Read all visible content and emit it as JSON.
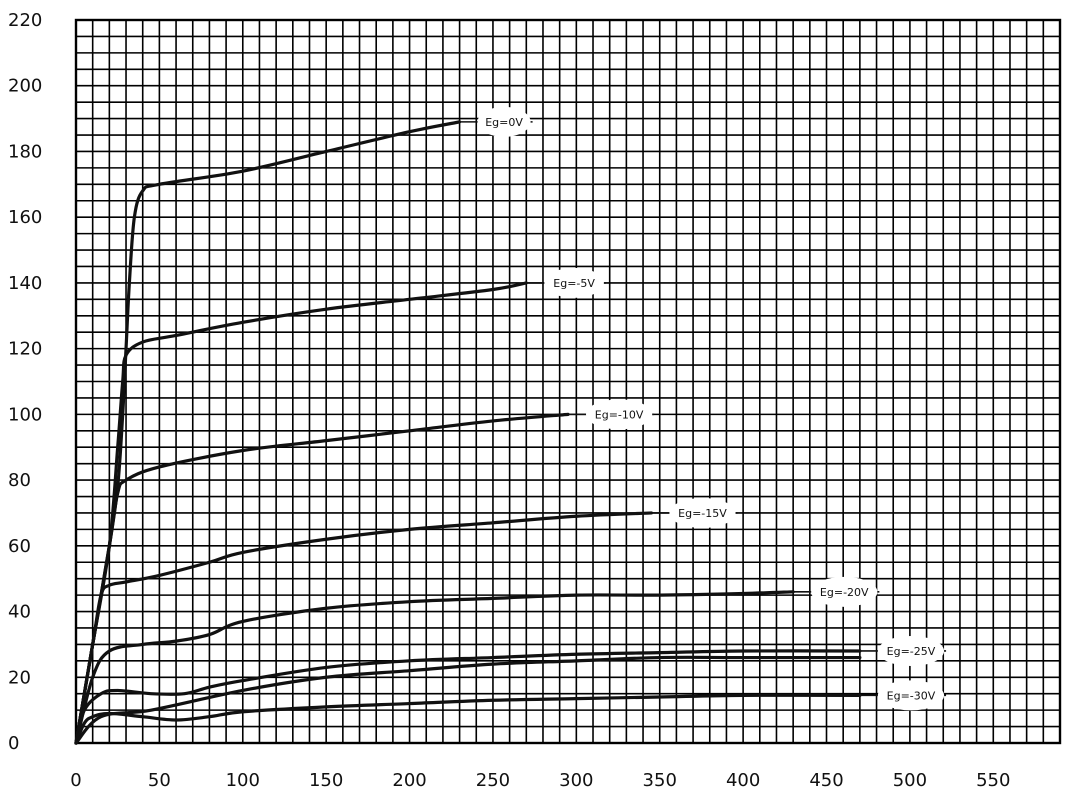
{
  "chart_data": {
    "type": "line",
    "title": "",
    "xlabel": "",
    "ylabel": "",
    "xlim": [
      0,
      590
    ],
    "ylim": [
      0,
      220
    ],
    "x_ticks": [
      0,
      50,
      100,
      150,
      200,
      250,
      300,
      350,
      400,
      450,
      500,
      550
    ],
    "x_tick_labels": [
      "0",
      "50",
      "100",
      "150",
      "200",
      "250",
      "300",
      "350",
      "400",
      "450",
      "500",
      "550"
    ],
    "y_ticks": [
      0,
      20,
      40,
      60,
      80,
      100,
      120,
      140,
      160,
      180,
      200,
      220
    ],
    "y_tick_labels": [
      "0",
      "20",
      "40",
      "60",
      "80",
      "100",
      "120",
      "140",
      "160",
      "180",
      "200",
      "220"
    ],
    "grid": true,
    "grid_step_x": 10,
    "grid_step_y": 5,
    "line_color": "#111111",
    "grid_color": "#000000",
    "series": [
      {
        "name": "Eg=0V",
        "points": [
          [
            0,
            0
          ],
          [
            10,
            30
          ],
          [
            20,
            60
          ],
          [
            25,
            78
          ],
          [
            28,
            100
          ],
          [
            30,
            120
          ],
          [
            32,
            140
          ],
          [
            35,
            160
          ],
          [
            40,
            168
          ],
          [
            50,
            170
          ],
          [
            100,
            174
          ],
          [
            150,
            180
          ],
          [
            200,
            186
          ],
          [
            230,
            189
          ]
        ]
      },
      {
        "name": "Eg=-5V",
        "points": [
          [
            0,
            0
          ],
          [
            10,
            30
          ],
          [
            20,
            60
          ],
          [
            25,
            90
          ],
          [
            28,
            110
          ],
          [
            30,
            118
          ],
          [
            40,
            122
          ],
          [
            60,
            124
          ],
          [
            100,
            128
          ],
          [
            150,
            132
          ],
          [
            200,
            135
          ],
          [
            250,
            138
          ],
          [
            270,
            140
          ]
        ]
      },
      {
        "name": "Eg=-10V",
        "points": [
          [
            0,
            0
          ],
          [
            10,
            30
          ],
          [
            20,
            60
          ],
          [
            25,
            76
          ],
          [
            30,
            80
          ],
          [
            50,
            84
          ],
          [
            100,
            89
          ],
          [
            150,
            92
          ],
          [
            200,
            95
          ],
          [
            250,
            98
          ],
          [
            295,
            100
          ]
        ]
      },
      {
        "name": "Eg=-15V",
        "points": [
          [
            0,
            0
          ],
          [
            10,
            30
          ],
          [
            15,
            45
          ],
          [
            20,
            48
          ],
          [
            30,
            49
          ],
          [
            50,
            51
          ],
          [
            80,
            55
          ],
          [
            100,
            58
          ],
          [
            150,
            62
          ],
          [
            200,
            65
          ],
          [
            250,
            67
          ],
          [
            300,
            69
          ],
          [
            345,
            70
          ]
        ]
      },
      {
        "name": "Eg=-20V",
        "points": [
          [
            0,
            0
          ],
          [
            10,
            20
          ],
          [
            20,
            28
          ],
          [
            40,
            30
          ],
          [
            60,
            31
          ],
          [
            80,
            33
          ],
          [
            100,
            37
          ],
          [
            150,
            41
          ],
          [
            200,
            43
          ],
          [
            250,
            44
          ],
          [
            300,
            45
          ],
          [
            350,
            45
          ],
          [
            400,
            45.5
          ],
          [
            430,
            46
          ]
        ]
      },
      {
        "name": "Eg=-25V",
        "points": [
          [
            0,
            0
          ],
          [
            5,
            10
          ],
          [
            15,
            15
          ],
          [
            25,
            16
          ],
          [
            45,
            15
          ],
          [
            65,
            15
          ],
          [
            80,
            17
          ],
          [
            100,
            19
          ],
          [
            150,
            23
          ],
          [
            200,
            25
          ],
          [
            250,
            26
          ],
          [
            300,
            27
          ],
          [
            350,
            27.5
          ],
          [
            400,
            28
          ],
          [
            470,
            28
          ]
        ]
      },
      {
        "name": "Eg=-30V",
        "points": [
          [
            0,
            0
          ],
          [
            5,
            6
          ],
          [
            10,
            8
          ],
          [
            20,
            9
          ],
          [
            40,
            8
          ],
          [
            60,
            7
          ],
          [
            80,
            8
          ],
          [
            100,
            9.5
          ],
          [
            150,
            11
          ],
          [
            200,
            12
          ],
          [
            250,
            13
          ],
          [
            300,
            13.5
          ],
          [
            350,
            14
          ],
          [
            400,
            14.5
          ],
          [
            470,
            14.5
          ]
        ]
      },
      {
        "name": "",
        "points": [
          [
            0,
            0
          ],
          [
            15,
            8
          ],
          [
            45,
            10
          ],
          [
            100,
            16
          ],
          [
            150,
            20
          ],
          [
            200,
            22
          ],
          [
            250,
            24
          ],
          [
            300,
            25
          ],
          [
            350,
            26
          ],
          [
            400,
            26
          ],
          [
            470,
            26
          ]
        ]
      }
    ]
  }
}
